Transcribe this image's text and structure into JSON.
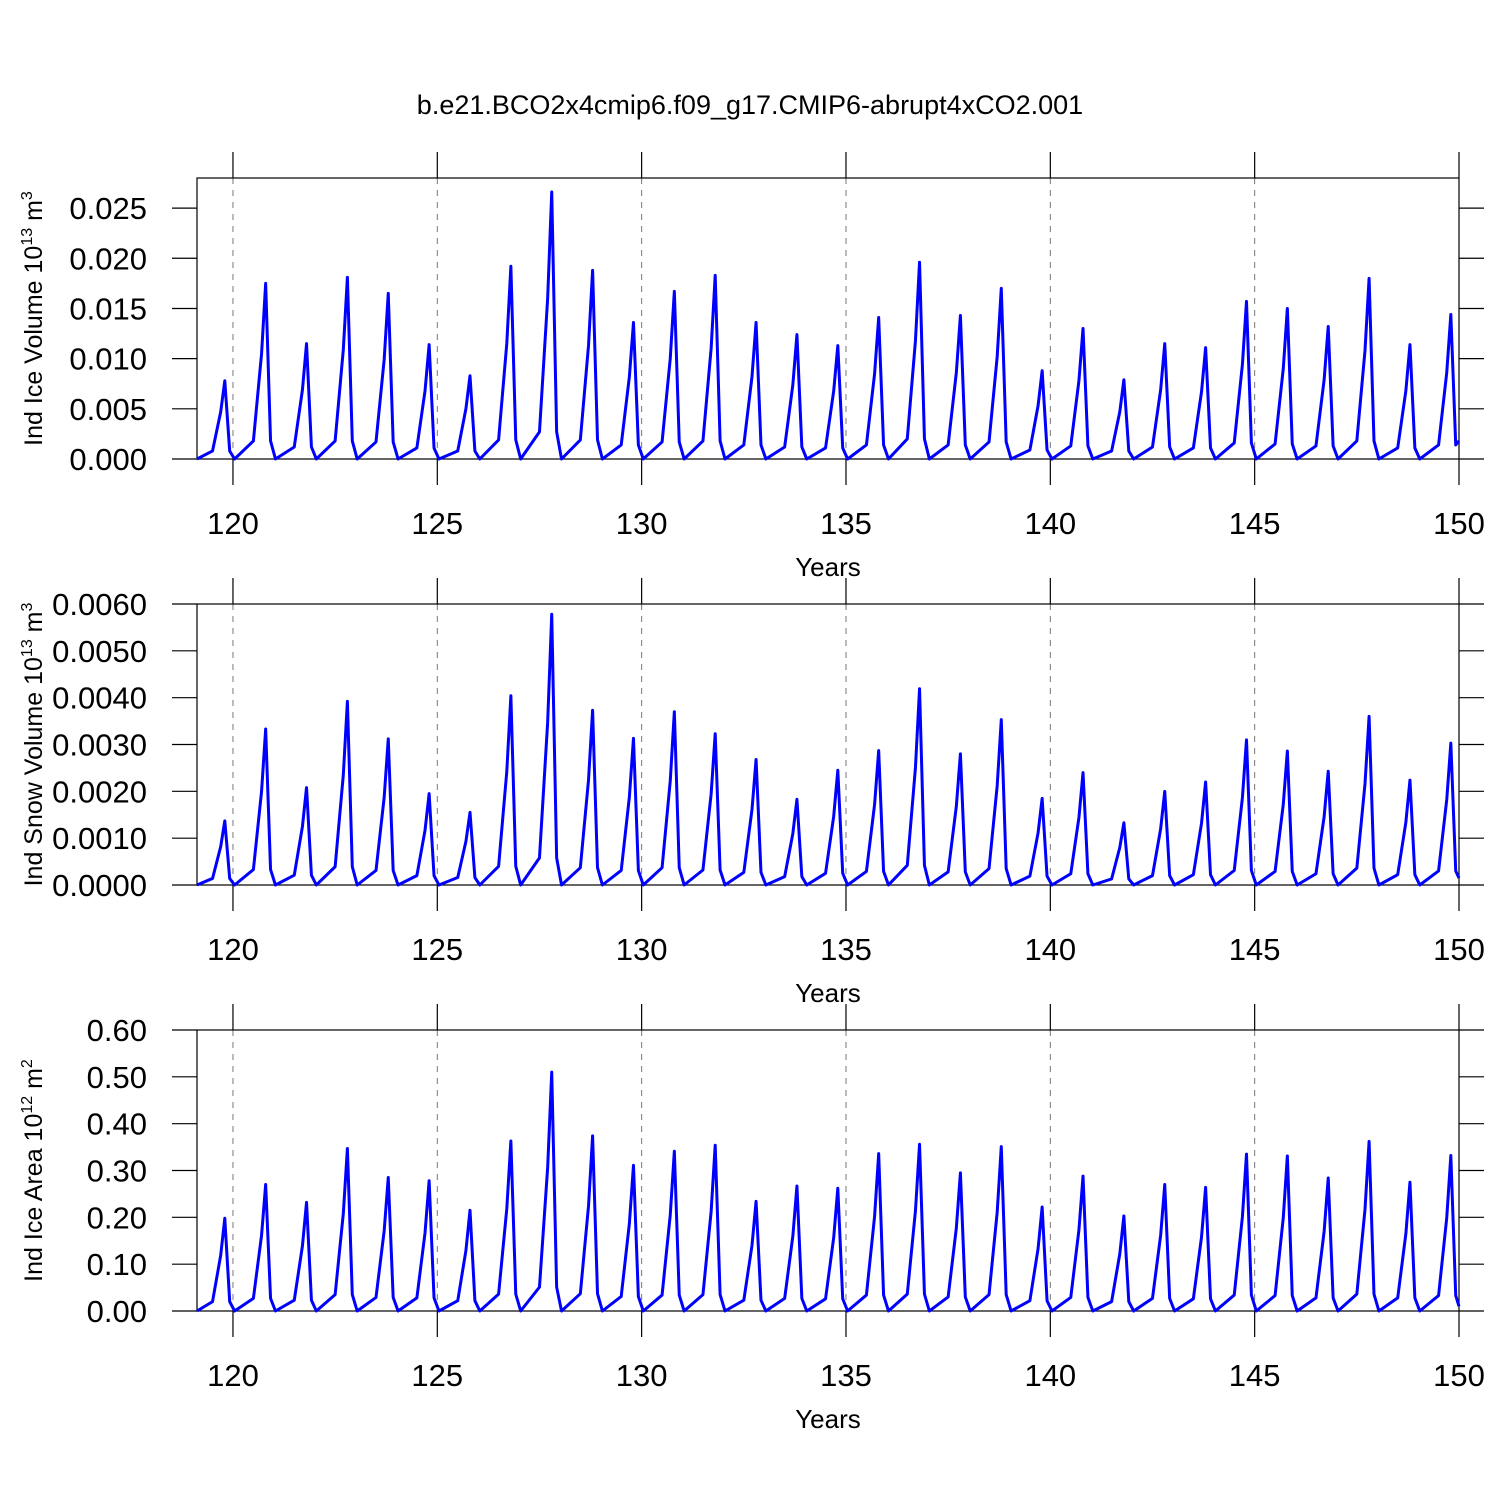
{
  "chart_data": [
    {
      "type": "line",
      "title": "b.e21.BCO2x4cmip6.f09_g17.CMIP6-abrupt4xCO2.001",
      "ylabel": [
        "Ind Ice Volume 10",
        "13",
        " m",
        "3"
      ],
      "xlabel": "Years",
      "xlim": [
        119.12,
        150
      ],
      "xticks": [
        120,
        125,
        130,
        135,
        140,
        145,
        150
      ],
      "ylim": [
        0,
        0.028
      ],
      "yticks": [
        {
          "value": 0,
          "label": "0.000"
        },
        0.005,
        {
          "value": 0.01,
          "label": "0.010"
        },
        0.015,
        {
          "value": 0.02,
          "label": "0.020"
        },
        0.025
      ],
      "grid": true,
      "color": "#0000ff",
      "x": [
        119.12,
        119.5,
        119.7,
        119.8,
        119.92,
        120.04,
        120.5,
        120.7,
        120.8,
        120.92,
        121.04,
        121.5,
        121.7,
        121.8,
        121.92,
        122.04,
        122.5,
        122.7,
        122.8,
        122.92,
        123.04,
        123.5,
        123.7,
        123.8,
        123.92,
        124.04,
        124.5,
        124.7,
        124.8,
        124.92,
        125.04,
        125.5,
        125.7,
        125.8,
        125.92,
        126.04,
        126.5,
        126.7,
        126.8,
        126.92,
        127.04,
        127.5,
        127.7,
        127.8,
        127.92,
        128.04,
        128.5,
        128.7,
        128.8,
        128.92,
        129.04,
        129.5,
        129.7,
        129.8,
        129.92,
        130.04,
        130.5,
        130.7,
        130.8,
        130.92,
        131.04,
        131.5,
        131.7,
        131.8,
        131.92,
        132.04,
        132.5,
        132.7,
        132.8,
        132.92,
        133.04,
        133.5,
        133.7,
        133.8,
        133.92,
        134.04,
        134.5,
        134.7,
        134.8,
        134.92,
        135.04,
        135.5,
        135.7,
        135.8,
        135.92,
        136.04,
        136.5,
        136.7,
        136.8,
        136.92,
        137.04,
        137.5,
        137.7,
        137.8,
        137.92,
        138.04,
        138.5,
        138.7,
        138.8,
        138.92,
        139.04,
        139.5,
        139.7,
        139.8,
        139.92,
        140.04,
        140.5,
        140.7,
        140.8,
        140.92,
        141.04,
        141.5,
        141.7,
        141.8,
        141.92,
        142.04,
        142.5,
        142.7,
        142.8,
        142.92,
        143.04,
        143.5,
        143.7,
        143.8,
        143.92,
        144.04,
        144.5,
        144.7,
        144.8,
        144.92,
        145.04,
        145.5,
        145.7,
        145.8,
        145.92,
        146.04,
        146.5,
        146.7,
        146.8,
        146.92,
        147.04,
        147.5,
        147.7,
        147.8,
        147.92,
        148.04,
        148.5,
        148.7,
        148.8,
        148.92,
        149.04,
        149.5,
        149.7,
        149.8,
        149.92,
        150
      ],
      "values": [
        0,
        0.0008,
        0.0047,
        0.0078,
        0.0008,
        0,
        0.0018,
        0.0105,
        0.0175,
        0.0018,
        0,
        0.0012,
        0.0069,
        0.0115,
        0.0012,
        0,
        0.0018,
        0.0109,
        0.0181,
        0.0018,
        0,
        0.0017,
        0.0099,
        0.0165,
        0.0017,
        0,
        0.0011,
        0.0068,
        0.0114,
        0.0011,
        0,
        0.0008,
        0.005,
        0.0083,
        0.0008,
        0,
        0.0019,
        0.0115,
        0.0192,
        0.0019,
        0,
        0.0027,
        0.016,
        0.0266,
        0.0027,
        0,
        0.0019,
        0.0113,
        0.0188,
        0.0019,
        0,
        0.0014,
        0.0082,
        0.0136,
        0.0014,
        0,
        0.0017,
        0.01,
        0.0167,
        0.0017,
        0,
        0.0018,
        0.011,
        0.0183,
        0.0018,
        0,
        0.0014,
        0.0082,
        0.0136,
        0.0014,
        0,
        0.0012,
        0.0074,
        0.0124,
        0.0012,
        0,
        0.0011,
        0.0068,
        0.0113,
        0.0011,
        0,
        0.0014,
        0.0085,
        0.0141,
        0.0014,
        0,
        0.002,
        0.0118,
        0.0196,
        0.002,
        0,
        0.0014,
        0.0086,
        0.0143,
        0.0014,
        0,
        0.0017,
        0.0102,
        0.017,
        0.0017,
        0,
        0.0009,
        0.0053,
        0.0088,
        0.0009,
        0,
        0.0013,
        0.0078,
        0.013,
        0.0013,
        0,
        0.0008,
        0.0047,
        0.0079,
        0.0008,
        0,
        0.0012,
        0.0069,
        0.0115,
        0.0012,
        0,
        0.0011,
        0.0067,
        0.0111,
        0.0011,
        0,
        0.0016,
        0.0094,
        0.0157,
        0.0016,
        0,
        0.0015,
        0.009,
        0.015,
        0.0015,
        0,
        0.0013,
        0.0079,
        0.0132,
        0.0013,
        0,
        0.0018,
        0.0108,
        0.018,
        0.0018,
        0,
        0.0011,
        0.0068,
        0.0114,
        0.0011,
        0,
        0.0014,
        0.0086,
        0.0144,
        0.0014,
        0.0018
      ]
    },
    {
      "type": "line",
      "ylabel": [
        "Ind Snow Volume 10",
        "13",
        " m",
        "3"
      ],
      "xlabel": "Years",
      "xlim": [
        119.12,
        150
      ],
      "xticks": [
        120,
        125,
        130,
        135,
        140,
        145,
        150
      ],
      "ylim": [
        0,
        0.006
      ],
      "yticks": [
        {
          "value": 0,
          "label": "0.0000"
        },
        {
          "value": 0.001,
          "label": "0.0010"
        },
        {
          "value": 0.002,
          "label": "0.0020"
        },
        {
          "value": 0.003,
          "label": "0.0030"
        },
        {
          "value": 0.004,
          "label": "0.0040"
        },
        {
          "value": 0.005,
          "label": "0.0050"
        },
        {
          "value": 0.006,
          "label": "0.0060"
        }
      ],
      "grid": true,
      "color": "#0000ff",
      "x": [
        119.12,
        119.5,
        119.7,
        119.8,
        119.92,
        120.04,
        120.5,
        120.7,
        120.8,
        120.92,
        121.04,
        121.5,
        121.7,
        121.8,
        121.92,
        122.04,
        122.5,
        122.7,
        122.8,
        122.92,
        123.04,
        123.5,
        123.7,
        123.8,
        123.92,
        124.04,
        124.5,
        124.7,
        124.8,
        124.92,
        125.04,
        125.5,
        125.7,
        125.8,
        125.92,
        126.04,
        126.5,
        126.7,
        126.8,
        126.92,
        127.04,
        127.5,
        127.7,
        127.8,
        127.92,
        128.04,
        128.5,
        128.7,
        128.8,
        128.92,
        129.04,
        129.5,
        129.7,
        129.8,
        129.92,
        130.04,
        130.5,
        130.7,
        130.8,
        130.92,
        131.04,
        131.5,
        131.7,
        131.8,
        131.92,
        132.04,
        132.5,
        132.7,
        132.8,
        132.92,
        133.04,
        133.5,
        133.7,
        133.8,
        133.92,
        134.04,
        134.5,
        134.7,
        134.8,
        134.92,
        135.04,
        135.5,
        135.7,
        135.8,
        135.92,
        136.04,
        136.5,
        136.7,
        136.8,
        136.92,
        137.04,
        137.5,
        137.7,
        137.8,
        137.92,
        138.04,
        138.5,
        138.7,
        138.8,
        138.92,
        139.04,
        139.5,
        139.7,
        139.8,
        139.92,
        140.04,
        140.5,
        140.7,
        140.8,
        140.92,
        141.04,
        141.5,
        141.7,
        141.8,
        141.92,
        142.04,
        142.5,
        142.7,
        142.8,
        142.92,
        143.04,
        143.5,
        143.7,
        143.8,
        143.92,
        144.04,
        144.5,
        144.7,
        144.8,
        144.92,
        145.04,
        145.5,
        145.7,
        145.8,
        145.92,
        146.04,
        146.5,
        146.7,
        146.8,
        146.92,
        147.04,
        147.5,
        147.7,
        147.8,
        147.92,
        148.04,
        148.5,
        148.7,
        148.8,
        148.92,
        149.04,
        149.5,
        149.7,
        149.8,
        149.92,
        150
      ],
      "values": [
        0,
        0.00014,
        0.00082,
        0.00137,
        0.00014,
        0,
        0.00033,
        0.002,
        0.00333,
        0.00033,
        0,
        0.00021,
        0.00125,
        0.00208,
        0.00021,
        0,
        0.00039,
        0.00235,
        0.00392,
        0.00039,
        0,
        0.00031,
        0.00187,
        0.00312,
        0.00031,
        0,
        0.0002,
        0.00117,
        0.00195,
        0.0002,
        0,
        0.00016,
        0.00093,
        0.00155,
        0.00016,
        0,
        0.0004,
        0.00242,
        0.00404,
        0.0004,
        0,
        0.00058,
        0.00347,
        0.00578,
        0.00058,
        0,
        0.00037,
        0.00224,
        0.00373,
        0.00037,
        0,
        0.00031,
        0.00188,
        0.00313,
        0.00031,
        0,
        0.00037,
        0.00222,
        0.0037,
        0.00037,
        0,
        0.00032,
        0.00194,
        0.00323,
        0.00032,
        0,
        0.00027,
        0.00161,
        0.00268,
        0.00027,
        0,
        0.00018,
        0.0011,
        0.00183,
        0.00018,
        0,
        0.00025,
        0.00147,
        0.00245,
        0.00025,
        0,
        0.00029,
        0.00172,
        0.00287,
        0.00029,
        0,
        0.00042,
        0.00251,
        0.00419,
        0.00042,
        0,
        0.00028,
        0.00168,
        0.0028,
        0.00028,
        0,
        0.00035,
        0.00212,
        0.00353,
        0.00035,
        0,
        0.00019,
        0.00111,
        0.00185,
        0.00019,
        0,
        0.00024,
        0.00144,
        0.0024,
        0.00024,
        0,
        0.00013,
        0.0008,
        0.00133,
        0.00013,
        0,
        0.0002,
        0.0012,
        0.002,
        0.0002,
        0,
        0.00022,
        0.00132,
        0.0022,
        0.00022,
        0,
        0.00031,
        0.00186,
        0.0031,
        0.00031,
        0,
        0.00029,
        0.00172,
        0.00286,
        0.00029,
        0,
        0.00024,
        0.00146,
        0.00243,
        0.00024,
        0,
        0.00036,
        0.00216,
        0.0036,
        0.00036,
        0,
        0.00022,
        0.00134,
        0.00224,
        0.00022,
        0,
        0.0003,
        0.00182,
        0.00303,
        0.0003,
        0.00015
      ]
    },
    {
      "type": "line",
      "ylabel": [
        "Ind Ice Area 10",
        "12",
        " m",
        "2"
      ],
      "xlabel": "Years",
      "xlim": [
        119.12,
        150
      ],
      "xticks": [
        120,
        125,
        130,
        135,
        140,
        145,
        150
      ],
      "ylim": [
        0,
        0.6
      ],
      "yticks": [
        {
          "value": 0,
          "label": "0.00"
        },
        {
          "value": 0.1,
          "label": "0.10"
        },
        {
          "value": 0.2,
          "label": "0.20"
        },
        {
          "value": 0.3,
          "label": "0.30"
        },
        {
          "value": 0.4,
          "label": "0.40"
        },
        {
          "value": 0.5,
          "label": "0.50"
        },
        {
          "value": 0.6,
          "label": "0.60"
        }
      ],
      "grid": true,
      "color": "#0000ff",
      "x": [
        119.12,
        119.5,
        119.7,
        119.8,
        119.92,
        120.04,
        120.5,
        120.7,
        120.8,
        120.92,
        121.04,
        121.5,
        121.7,
        121.8,
        121.92,
        122.04,
        122.5,
        122.7,
        122.8,
        122.92,
        123.04,
        123.5,
        123.7,
        123.8,
        123.92,
        124.04,
        124.5,
        124.7,
        124.8,
        124.92,
        125.04,
        125.5,
        125.7,
        125.8,
        125.92,
        126.04,
        126.5,
        126.7,
        126.8,
        126.92,
        127.04,
        127.5,
        127.7,
        127.8,
        127.92,
        128.04,
        128.5,
        128.7,
        128.8,
        128.92,
        129.04,
        129.5,
        129.7,
        129.8,
        129.92,
        130.04,
        130.5,
        130.7,
        130.8,
        130.92,
        131.04,
        131.5,
        131.7,
        131.8,
        131.92,
        132.04,
        132.5,
        132.7,
        132.8,
        132.92,
        133.04,
        133.5,
        133.7,
        133.8,
        133.92,
        134.04,
        134.5,
        134.7,
        134.8,
        134.92,
        135.04,
        135.5,
        135.7,
        135.8,
        135.92,
        136.04,
        136.5,
        136.7,
        136.8,
        136.92,
        137.04,
        137.5,
        137.7,
        137.8,
        137.92,
        138.04,
        138.5,
        138.7,
        138.8,
        138.92,
        139.04,
        139.5,
        139.7,
        139.8,
        139.92,
        140.04,
        140.5,
        140.7,
        140.8,
        140.92,
        141.04,
        141.5,
        141.7,
        141.8,
        141.92,
        142.04,
        142.5,
        142.7,
        142.8,
        142.92,
        143.04,
        143.5,
        143.7,
        143.8,
        143.92,
        144.04,
        144.5,
        144.7,
        144.8,
        144.92,
        145.04,
        145.5,
        145.7,
        145.8,
        145.92,
        146.04,
        146.5,
        146.7,
        146.8,
        146.92,
        147.04,
        147.5,
        147.7,
        147.8,
        147.92,
        148.04,
        148.5,
        148.7,
        148.8,
        148.92,
        149.04,
        149.5,
        149.7,
        149.8,
        149.92,
        150
      ],
      "values": [
        0,
        0.02,
        0.119,
        0.198,
        0.02,
        0,
        0.027,
        0.162,
        0.27,
        0.027,
        0,
        0.023,
        0.139,
        0.232,
        0.023,
        0,
        0.035,
        0.208,
        0.347,
        0.035,
        0,
        0.029,
        0.171,
        0.285,
        0.029,
        0,
        0.028,
        0.167,
        0.278,
        0.028,
        0,
        0.022,
        0.129,
        0.215,
        0.022,
        0,
        0.036,
        0.218,
        0.363,
        0.036,
        0,
        0.051,
        0.306,
        0.51,
        0.051,
        0,
        0.037,
        0.224,
        0.374,
        0.037,
        0,
        0.031,
        0.187,
        0.311,
        0.031,
        0,
        0.034,
        0.205,
        0.341,
        0.034,
        0,
        0.035,
        0.212,
        0.354,
        0.035,
        0,
        0.023,
        0.14,
        0.234,
        0.023,
        0,
        0.027,
        0.16,
        0.267,
        0.027,
        0,
        0.026,
        0.157,
        0.262,
        0.026,
        0,
        0.034,
        0.202,
        0.336,
        0.034,
        0,
        0.036,
        0.214,
        0.356,
        0.036,
        0,
        0.03,
        0.177,
        0.295,
        0.03,
        0,
        0.035,
        0.211,
        0.351,
        0.035,
        0,
        0.022,
        0.133,
        0.222,
        0.022,
        0,
        0.029,
        0.173,
        0.288,
        0.029,
        0,
        0.02,
        0.122,
        0.203,
        0.02,
        0,
        0.027,
        0.162,
        0.27,
        0.027,
        0,
        0.026,
        0.158,
        0.264,
        0.026,
        0,
        0.034,
        0.201,
        0.335,
        0.034,
        0,
        0.033,
        0.199,
        0.331,
        0.033,
        0,
        0.028,
        0.17,
        0.284,
        0.028,
        0,
        0.036,
        0.217,
        0.362,
        0.036,
        0,
        0.028,
        0.165,
        0.275,
        0.028,
        0,
        0.033,
        0.199,
        0.332,
        0.033,
        0.01
      ]
    }
  ]
}
